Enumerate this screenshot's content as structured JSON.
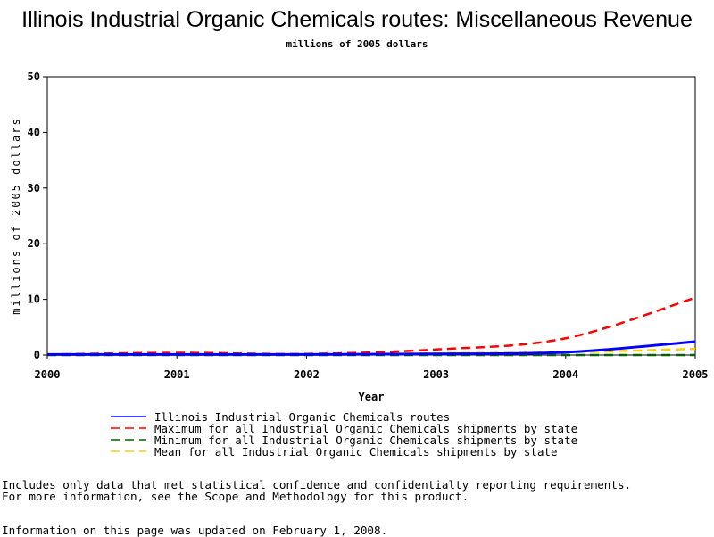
{
  "chart_data": {
    "type": "line",
    "title": "Illinois Industrial Organic Chemicals routes: Miscellaneous Revenue",
    "subtitle": "millions of 2005 dollars",
    "xlabel": "Year",
    "ylabel": "millions of 2005 dollars",
    "xlim": [
      2000,
      2005
    ],
    "ylim": [
      0,
      50
    ],
    "xticks": [
      2000,
      2001,
      2002,
      2003,
      2004,
      2005
    ],
    "yticks": [
      0,
      10,
      20,
      30,
      40,
      50
    ],
    "grid": false,
    "legend_position": "bottom",
    "series": [
      {
        "name": "Illinois Industrial Organic Chemicals routes",
        "color": "#0000ff",
        "style": "solid",
        "x": [
          2000,
          2001,
          2002,
          2003,
          2004,
          2005
        ],
        "y": [
          0.1,
          0.1,
          0.1,
          0.2,
          0.5,
          2.4
        ]
      },
      {
        "name": "Maximum for all Industrial Organic Chemicals shipments by state",
        "color": "#ff0000",
        "style": "dashed",
        "x": [
          2000,
          2001,
          2002,
          2003,
          2004,
          2005
        ],
        "y": [
          0.1,
          0.4,
          0.2,
          1.0,
          3.0,
          10.3
        ]
      },
      {
        "name": "Minimum for all Industrial Organic Chemicals shipments by state",
        "color": "#006400",
        "style": "dashed",
        "x": [
          2000,
          2001,
          2002,
          2003,
          2004,
          2005
        ],
        "y": [
          0.0,
          0.0,
          0.0,
          0.0,
          0.0,
          0.0
        ]
      },
      {
        "name": "Mean for all Industrial Organic Chemicals shipments by state",
        "color": "#ffcc00",
        "style": "dashed",
        "x": [
          2000,
          2001,
          2002,
          2003,
          2004,
          2005
        ],
        "y": [
          0.1,
          0.1,
          0.1,
          0.3,
          0.5,
          1.1
        ]
      }
    ]
  },
  "footnote": {
    "line1": "Includes only data that met statistical confidence and confidentialty reporting requirements.",
    "line2": "For more information, see the Scope and Methodology for this product.",
    "updated": "Information on this page was updated on February 1, 2008."
  }
}
